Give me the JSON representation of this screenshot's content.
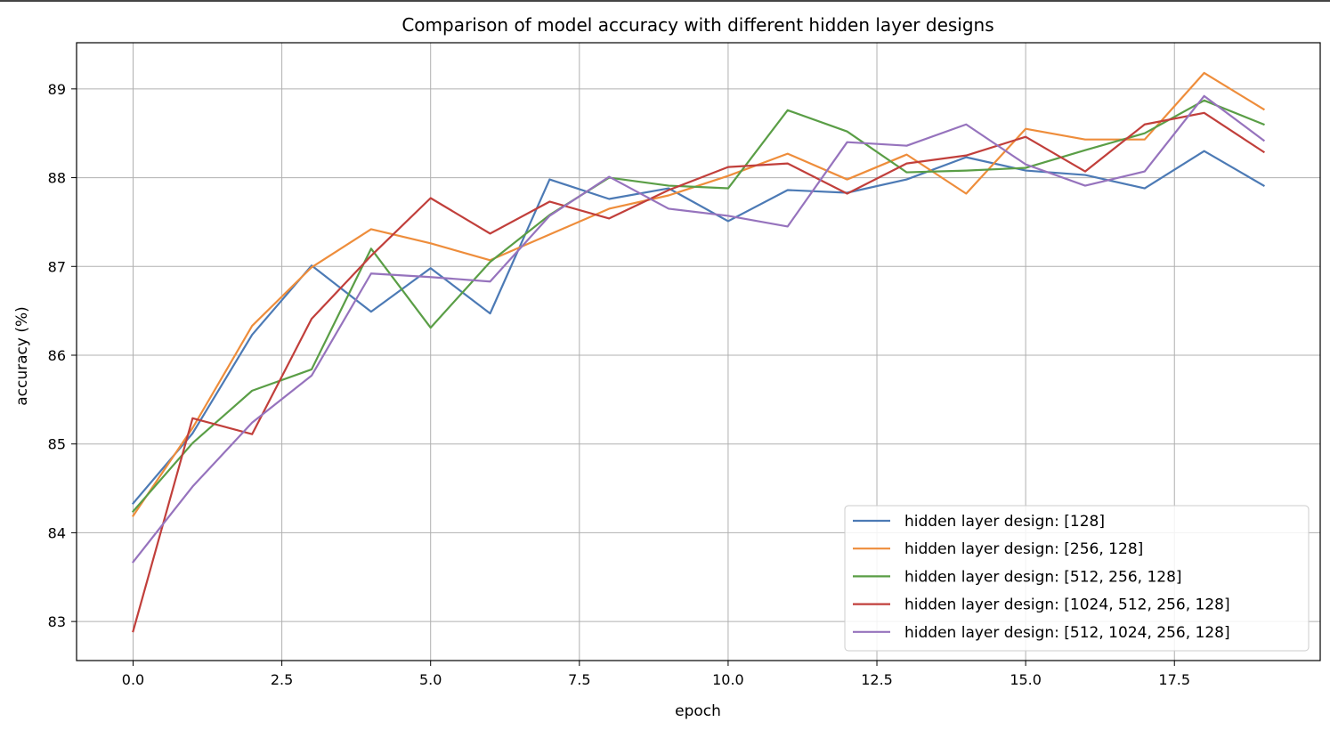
{
  "chart_data": {
    "type": "line",
    "title": "Comparison of model accuracy with different hidden layer designs",
    "xlabel": "epoch",
    "ylabel": "accuracy (%)",
    "xlim": [
      -0.95,
      19.95
    ],
    "ylim": [
      82.56,
      89.52
    ],
    "xticks": [
      0.0,
      2.5,
      5.0,
      7.5,
      10.0,
      12.5,
      15.0,
      17.5
    ],
    "xtick_labels": [
      "0.0",
      "2.5",
      "5.0",
      "7.5",
      "10.0",
      "12.5",
      "15.0",
      "17.5"
    ],
    "yticks": [
      83,
      84,
      85,
      86,
      87,
      88,
      89
    ],
    "ytick_labels": [
      "83",
      "84",
      "85",
      "86",
      "87",
      "88",
      "89"
    ],
    "grid": true,
    "legend_position": "lower-right",
    "x": [
      0,
      1,
      2,
      3,
      4,
      5,
      6,
      7,
      8,
      9,
      10,
      11,
      12,
      13,
      14,
      15,
      16,
      17,
      18,
      19
    ],
    "series": [
      {
        "name": "hidden layer design: [128]",
        "color": "#4c7ab5",
        "values": [
          84.33,
          85.12,
          86.23,
          87.01,
          86.49,
          86.98,
          86.47,
          87.98,
          87.76,
          87.88,
          87.51,
          87.86,
          87.83,
          87.98,
          88.23,
          88.08,
          88.03,
          87.88,
          88.3,
          87.91
        ]
      },
      {
        "name": "hidden layer design: [256, 128]",
        "color": "#ee8d3b",
        "values": [
          84.19,
          85.18,
          86.33,
          86.99,
          87.42,
          87.26,
          87.07,
          87.36,
          87.65,
          87.8,
          88.02,
          88.27,
          87.98,
          88.26,
          87.82,
          88.55,
          88.43,
          88.43,
          89.18,
          88.77
        ]
      },
      {
        "name": "hidden layer design: [512, 256, 128]",
        "color": "#5a9e46",
        "values": [
          84.24,
          85.01,
          85.6,
          85.84,
          87.2,
          86.31,
          87.05,
          87.58,
          88.0,
          87.91,
          87.88,
          88.76,
          88.52,
          88.06,
          88.08,
          88.11,
          88.31,
          88.5,
          88.87,
          88.6
        ]
      },
      {
        "name": "hidden layer design: [1024, 512, 256, 128]",
        "color": "#c13f3b",
        "values": [
          82.89,
          85.29,
          85.11,
          86.41,
          87.12,
          87.77,
          87.37,
          87.73,
          87.54,
          87.86,
          88.12,
          88.16,
          87.82,
          88.16,
          88.25,
          88.46,
          88.07,
          88.6,
          88.73,
          88.29
        ]
      },
      {
        "name": "hidden layer design: [512, 1024, 256, 128]",
        "color": "#9673bd",
        "values": [
          83.67,
          84.52,
          85.24,
          85.77,
          86.92,
          86.88,
          86.83,
          87.57,
          88.01,
          87.65,
          87.57,
          87.45,
          88.4,
          88.36,
          88.6,
          88.15,
          87.91,
          88.07,
          88.92,
          88.42
        ]
      }
    ]
  }
}
